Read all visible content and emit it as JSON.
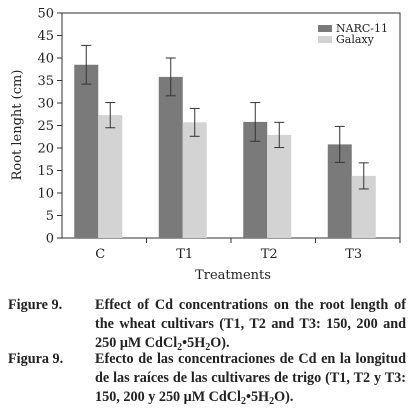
{
  "chart_data": {
    "type": "bar",
    "ylabel": "Root lenght (cm)",
    "xlabel": "Treatments",
    "ylim": [
      0,
      50
    ],
    "yticks": [
      0,
      5,
      10,
      15,
      20,
      25,
      30,
      35,
      40,
      45,
      50
    ],
    "categories": [
      "C",
      "T1",
      "T2",
      "T3"
    ],
    "series": [
      {
        "name": "NARC-11",
        "color": "#7a7a7a",
        "values": [
          38.5,
          35.8,
          25.8,
          20.8
        ],
        "errors": [
          4.3,
          4.2,
          4.3,
          4.0
        ]
      },
      {
        "name": "Galaxy",
        "color": "#d3d3d3",
        "values": [
          27.3,
          25.7,
          22.9,
          13.8
        ],
        "errors": [
          2.8,
          3.1,
          2.8,
          2.9
        ]
      }
    ],
    "legend_position": "top-right",
    "grid": false
  },
  "captions": {
    "en": {
      "label": "Figure 9.",
      "text_a": "Effect of Cd concentrations on the root length of the wheat cultivars (T1, T2 and T3: 150, 200 and 250 μM CdCl",
      "sub": "2",
      "text_b": "•5H",
      "sub2": "2",
      "text_c": "O)."
    },
    "es": {
      "label": "Figura 9.",
      "text_a": "Efecto de las concentraciones de Cd en la longitud de las raíces de las cultivares de trigo (T1, T2 y T3: 150, 200 y 250 μM CdCl",
      "sub": "2",
      "text_b": "•5H",
      "sub2": "2",
      "text_c": "O)."
    }
  }
}
